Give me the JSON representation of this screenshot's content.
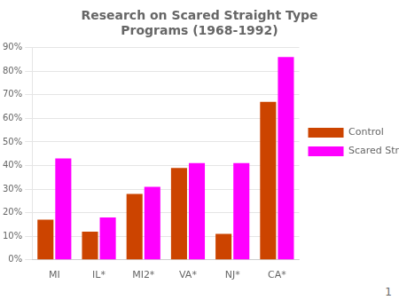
{
  "chart_data": {
    "type": "bar",
    "title": [
      "Research on Scared Straight Type",
      "Programs (1968-1992)"
    ],
    "categories": [
      "MI",
      "IL*",
      "MI2*",
      "VA*",
      "NJ*",
      "CA*"
    ],
    "series": [
      {
        "name": "Control",
        "color": "#CC4400",
        "values": [
          17,
          12,
          28,
          39,
          11,
          67
        ]
      },
      {
        "name": "Scared Straight",
        "color": "#FF00FF",
        "values": [
          43,
          18,
          31,
          41,
          41,
          86
        ]
      }
    ],
    "ylim": [
      0,
      90
    ],
    "yticks": [
      {
        "value": 0,
        "label": "0%"
      },
      {
        "value": 10,
        "label": "10%"
      },
      {
        "value": 20,
        "label": "20%"
      },
      {
        "value": 30,
        "label": "30%"
      },
      {
        "value": 40,
        "label": "40%"
      },
      {
        "value": 50,
        "label": "50%"
      },
      {
        "value": 60,
        "label": "60%"
      },
      {
        "value": 70,
        "label": "70%"
      },
      {
        "value": 80,
        "label": "80%"
      },
      {
        "value": 90,
        "label": "90%"
      }
    ],
    "grid": true,
    "legend": "right",
    "annotations": [
      "1"
    ]
  }
}
